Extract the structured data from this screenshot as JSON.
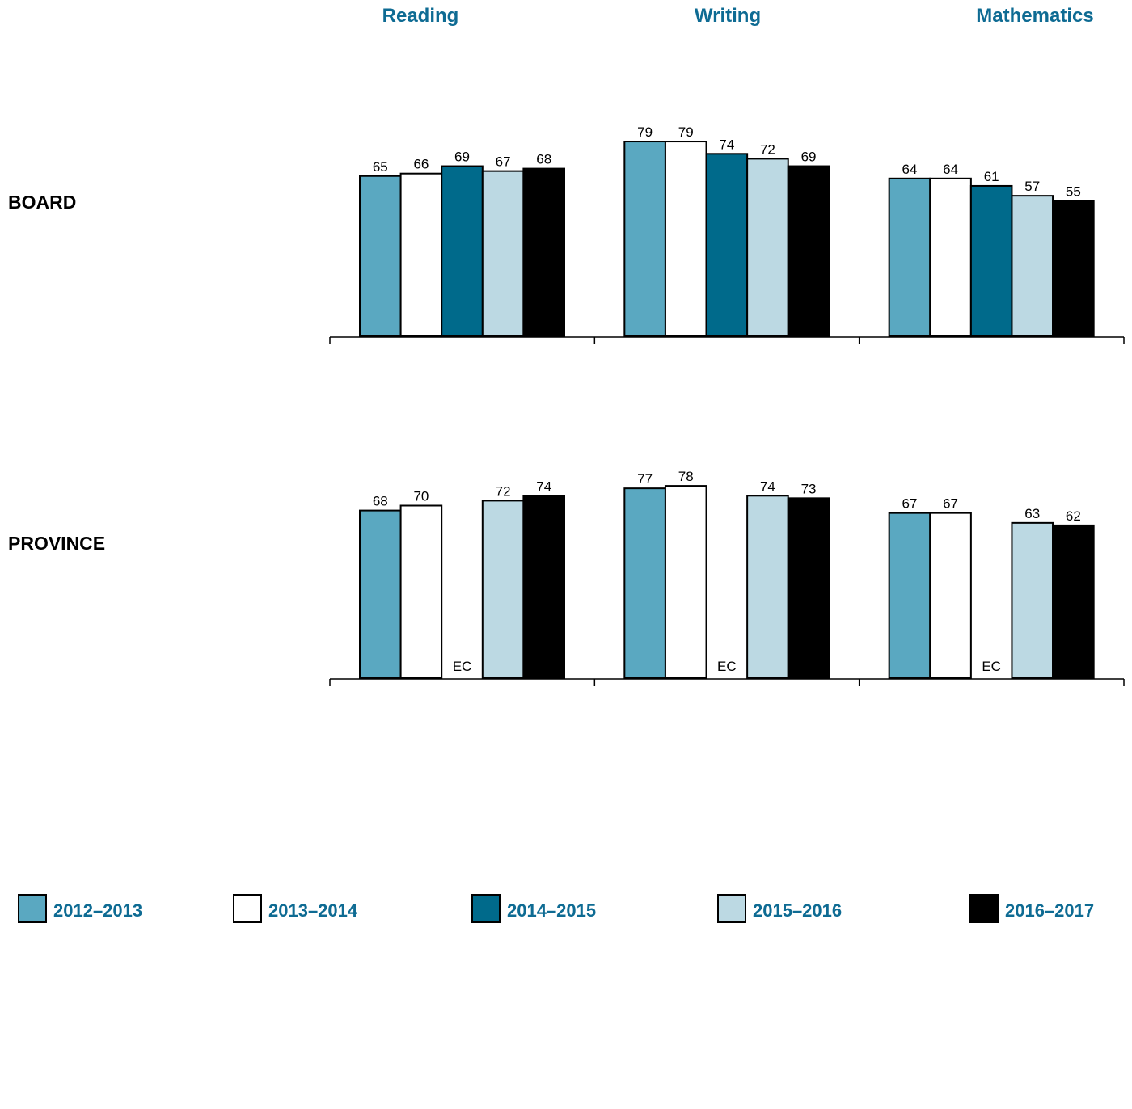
{
  "chart_data": {
    "type": "bar",
    "subjects": [
      "Reading",
      "Writing",
      "Mathematics"
    ],
    "series": [
      {
        "name": "2012–2013",
        "color": "#5aa8c1"
      },
      {
        "name": "2013–2014",
        "color": "#ffffff"
      },
      {
        "name": "2014–2015",
        "color": "#006a8b"
      },
      {
        "name": "2015–2016",
        "color": "#bcd9e3"
      },
      {
        "name": "2016–2017",
        "color": "#000000"
      }
    ],
    "panels": [
      {
        "label": "BOARD",
        "values": [
          [
            65,
            66,
            69,
            67,
            68
          ],
          [
            79,
            79,
            74,
            72,
            69
          ],
          [
            64,
            64,
            61,
            57,
            55
          ]
        ]
      },
      {
        "label": "PROVINCE",
        "values": [
          [
            68,
            70,
            null,
            72,
            74
          ],
          [
            77,
            78,
            null,
            74,
            73
          ],
          [
            67,
            67,
            null,
            63,
            62
          ]
        ],
        "missing_label": "EC"
      }
    ],
    "ylim": [
      0,
      100
    ],
    "grid": false,
    "legend_position": "bottom"
  }
}
